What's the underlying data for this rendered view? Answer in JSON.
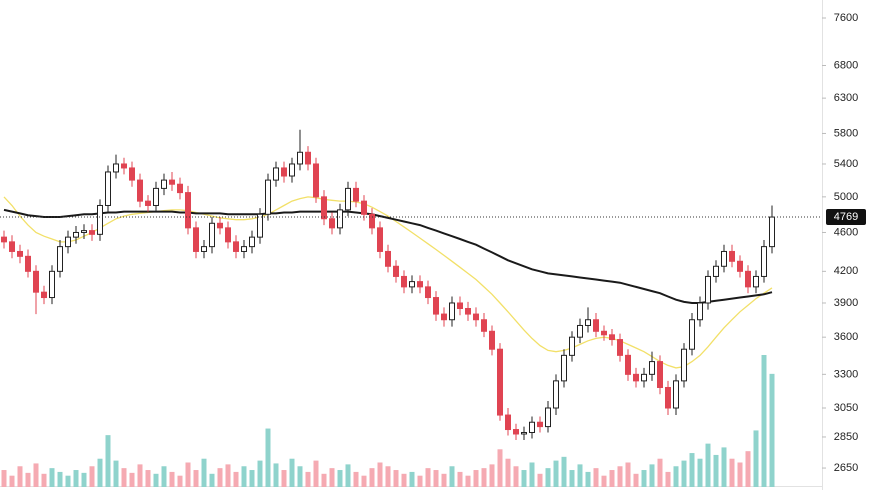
{
  "chart_data": {
    "type": "candlestick",
    "y_scale": "log",
    "ylim": [
      2535,
      7927
    ],
    "yticks": [
      2650,
      2850,
      3050,
      3300,
      3600,
      3900,
      4200,
      4600,
      5000,
      5400,
      5800,
      6300,
      6800,
      7600
    ],
    "last_price": 4769,
    "colors": {
      "up": "#222222",
      "down": "#e04452",
      "volume_up": "#8fd3cc",
      "volume_down": "#f5aab2"
    },
    "candles": [
      [
        4550,
        4620,
        4430,
        4500
      ],
      [
        4500,
        4570,
        4330,
        4400
      ],
      [
        4400,
        4470,
        4280,
        4350
      ],
      [
        4350,
        4420,
        4140,
        4200
      ],
      [
        4200,
        4260,
        3800,
        4000
      ],
      [
        4000,
        4060,
        3890,
        3950
      ],
      [
        3950,
        4260,
        3890,
        4200
      ],
      [
        4200,
        4520,
        4140,
        4450
      ],
      [
        4450,
        4620,
        4380,
        4550
      ],
      [
        4550,
        4670,
        4480,
        4600
      ],
      [
        4600,
        4690,
        4530,
        4620
      ],
      [
        4620,
        4690,
        4510,
        4580
      ],
      [
        4580,
        4970,
        4510,
        4900
      ],
      [
        4900,
        5380,
        4830,
        5300
      ],
      [
        5300,
        5520,
        5220,
        5400
      ],
      [
        5400,
        5480,
        5270,
        5350
      ],
      [
        5350,
        5430,
        5120,
        5200
      ],
      [
        5200,
        5280,
        4880,
        4950
      ],
      [
        4950,
        5020,
        4830,
        4900
      ],
      [
        4900,
        5180,
        4830,
        5100
      ],
      [
        5100,
        5280,
        5020,
        5200
      ],
      [
        5200,
        5300,
        5070,
        5150
      ],
      [
        5150,
        5230,
        4970,
        5050
      ],
      [
        5050,
        5130,
        4580,
        4650
      ],
      [
        4650,
        4720,
        4330,
        4400
      ],
      [
        4400,
        4520,
        4330,
        4450
      ],
      [
        4450,
        4770,
        4380,
        4700
      ],
      [
        4700,
        4770,
        4580,
        4650
      ],
      [
        4650,
        4720,
        4430,
        4500
      ],
      [
        4500,
        4570,
        4330,
        4400
      ],
      [
        4400,
        4520,
        4330,
        4450
      ],
      [
        4450,
        4620,
        4380,
        4550
      ],
      [
        4550,
        4870,
        4480,
        4800
      ],
      [
        4800,
        5280,
        4730,
        5200
      ],
      [
        5200,
        5430,
        5120,
        5350
      ],
      [
        5350,
        5430,
        5170,
        5250
      ],
      [
        5250,
        5480,
        5170,
        5400
      ],
      [
        5400,
        5850,
        5320,
        5550
      ],
      [
        5550,
        5630,
        5320,
        5400
      ],
      [
        5400,
        5480,
        4930,
        5000
      ],
      [
        5000,
        5080,
        4680,
        4750
      ],
      [
        4750,
        4820,
        4580,
        4650
      ],
      [
        4650,
        4920,
        4580,
        4850
      ],
      [
        4850,
        5180,
        4780,
        5100
      ],
      [
        5100,
        5180,
        4880,
        4950
      ],
      [
        4950,
        5020,
        4730,
        4800
      ],
      [
        4800,
        4870,
        4580,
        4650
      ],
      [
        4650,
        4720,
        4330,
        4400
      ],
      [
        4400,
        4470,
        4190,
        4250
      ],
      [
        4250,
        4310,
        4090,
        4150
      ],
      [
        4150,
        4210,
        3990,
        4050
      ],
      [
        4050,
        4160,
        3990,
        4100
      ],
      [
        4100,
        4160,
        3990,
        4050
      ],
      [
        4050,
        4110,
        3890,
        3950
      ],
      [
        3950,
        4010,
        3740,
        3800
      ],
      [
        3800,
        3860,
        3690,
        3750
      ],
      [
        3750,
        3960,
        3690,
        3900
      ],
      [
        3900,
        3960,
        3790,
        3850
      ],
      [
        3850,
        3910,
        3740,
        3800
      ],
      [
        3800,
        3860,
        3690,
        3750
      ],
      [
        3750,
        3810,
        3600,
        3650
      ],
      [
        3650,
        3700,
        3450,
        3500
      ],
      [
        3500,
        3550,
        2960,
        3000
      ],
      [
        3000,
        3050,
        2860,
        2900
      ],
      [
        2900,
        2940,
        2830,
        2870
      ],
      [
        2870,
        2920,
        2830,
        2880
      ],
      [
        2880,
        2990,
        2840,
        2950
      ],
      [
        2950,
        2990,
        2880,
        2920
      ],
      [
        2920,
        3100,
        2880,
        3050
      ],
      [
        3050,
        3300,
        3000,
        3250
      ],
      [
        3250,
        3500,
        3200,
        3450
      ],
      [
        3450,
        3650,
        3400,
        3600
      ],
      [
        3600,
        3760,
        3550,
        3700
      ],
      [
        3700,
        3860,
        3640,
        3750
      ],
      [
        3750,
        3810,
        3600,
        3650
      ],
      [
        3650,
        3700,
        3570,
        3620
      ],
      [
        3620,
        3670,
        3530,
        3580
      ],
      [
        3580,
        3630,
        3400,
        3450
      ],
      [
        3450,
        3500,
        3250,
        3300
      ],
      [
        3300,
        3350,
        3200,
        3250
      ],
      [
        3250,
        3350,
        3200,
        3300
      ],
      [
        3300,
        3480,
        3250,
        3400
      ],
      [
        3400,
        3450,
        3150,
        3200
      ],
      [
        3200,
        3250,
        3000,
        3050
      ],
      [
        3050,
        3300,
        3000,
        3250
      ],
      [
        3250,
        3550,
        3200,
        3500
      ],
      [
        3500,
        3810,
        3450,
        3750
      ],
      [
        3750,
        3960,
        3690,
        3900
      ],
      [
        3900,
        4210,
        3840,
        4150
      ],
      [
        4150,
        4310,
        4090,
        4250
      ],
      [
        4250,
        4470,
        4190,
        4400
      ],
      [
        4400,
        4470,
        4240,
        4300
      ],
      [
        4300,
        4360,
        4140,
        4200
      ],
      [
        4200,
        4260,
        3990,
        4050
      ],
      [
        4050,
        4210,
        3990,
        4150
      ],
      [
        4150,
        4520,
        4090,
        4450
      ],
      [
        4450,
        4900,
        4380,
        4769
      ]
    ],
    "volume": [
      18,
      12,
      22,
      15,
      25,
      14,
      20,
      16,
      12,
      18,
      15,
      22,
      30,
      55,
      28,
      20,
      15,
      24,
      18,
      14,
      22,
      16,
      12,
      26,
      18,
      30,
      14,
      20,
      24,
      16,
      22,
      18,
      28,
      62,
      25,
      18,
      30,
      22,
      16,
      28,
      14,
      20,
      18,
      24,
      16,
      12,
      20,
      26,
      22,
      18,
      14,
      16,
      12,
      20,
      18,
      14,
      22,
      16,
      12,
      18,
      20,
      24,
      40,
      30,
      22,
      18,
      26,
      14,
      20,
      28,
      32,
      18,
      24,
      16,
      20,
      12,
      18,
      22,
      26,
      14,
      18,
      24,
      30,
      16,
      22,
      28,
      36,
      30,
      46,
      34,
      42,
      30,
      26,
      38,
      60,
      140,
      120
    ],
    "moving_averages": [
      {
        "color": "#f2e068",
        "values": [
          5000,
          4900,
          4780,
          4680,
          4600,
          4560,
          4530,
          4500,
          4500,
          4520,
          4560,
          4600,
          4650,
          4700,
          4750,
          4780,
          4800,
          4810,
          4820,
          4830,
          4840,
          4850,
          4850,
          4840,
          4820,
          4800,
          4780,
          4760,
          4750,
          4740,
          4740,
          4750,
          4770,
          4800,
          4850,
          4900,
          4950,
          4980,
          5000,
          4990,
          4970,
          4960,
          4950,
          4950,
          4940,
          4920,
          4880,
          4830,
          4780,
          4720,
          4660,
          4600,
          4540,
          4480,
          4420,
          4360,
          4300,
          4240,
          4180,
          4120,
          4050,
          3980,
          3900,
          3820,
          3740,
          3660,
          3590,
          3530,
          3490,
          3480,
          3490,
          3510,
          3540,
          3570,
          3590,
          3600,
          3590,
          3570,
          3540,
          3510,
          3480,
          3440,
          3400,
          3370,
          3350,
          3360,
          3400,
          3450,
          3520,
          3600,
          3680,
          3750,
          3820,
          3880,
          3940,
          3990,
          4040
        ]
      },
      {
        "color": "#1a1a1a",
        "values": [
          4850,
          4830,
          4810,
          4790,
          4780,
          4770,
          4770,
          4770,
          4780,
          4790,
          4800,
          4800,
          4810,
          4820,
          4820,
          4830,
          4830,
          4830,
          4830,
          4830,
          4830,
          4830,
          4820,
          4820,
          4810,
          4810,
          4810,
          4810,
          4800,
          4800,
          4800,
          4800,
          4800,
          4810,
          4810,
          4820,
          4820,
          4830,
          4830,
          4830,
          4830,
          4830,
          4830,
          4830,
          4820,
          4810,
          4800,
          4780,
          4760,
          4740,
          4720,
          4700,
          4680,
          4650,
          4620,
          4590,
          4560,
          4530,
          4500,
          4470,
          4430,
          4390,
          4350,
          4310,
          4280,
          4250,
          4220,
          4200,
          4180,
          4170,
          4160,
          4150,
          4140,
          4130,
          4120,
          4110,
          4100,
          4090,
          4070,
          4050,
          4030,
          4010,
          3990,
          3960,
          3930,
          3910,
          3900,
          3900,
          3910,
          3920,
          3930,
          3940,
          3950,
          3960,
          3970,
          3980,
          4000
        ]
      }
    ]
  }
}
